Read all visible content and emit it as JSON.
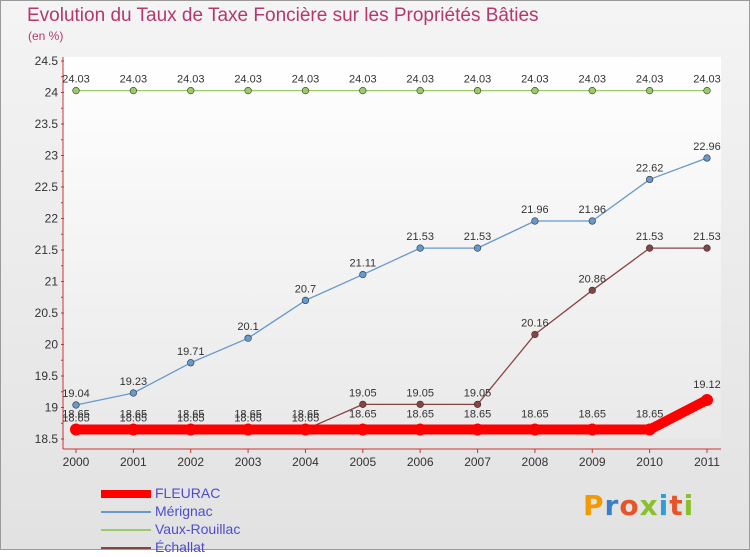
{
  "chart_data": {
    "type": "line",
    "title": "Evolution du Taux de Taxe Foncière sur les Propriétés Bâties",
    "ylabel": "(en %)",
    "categories": [
      "2000",
      "2001",
      "2002",
      "2003",
      "2004",
      "2005",
      "2006",
      "2007",
      "2008",
      "2009",
      "2010",
      "2011"
    ],
    "ylim": [
      18.5,
      24.5
    ],
    "yticks": [
      18.5,
      19,
      19.5,
      20,
      20.5,
      21,
      21.5,
      22,
      22.5,
      23,
      23.5,
      24,
      24.5
    ],
    "ytick_labels": [
      "18.5",
      "19",
      "19.5",
      "20",
      "20.5",
      "21",
      "21.5",
      "22",
      "22.5",
      "23",
      "23.5",
      "24",
      "24.5"
    ],
    "series": [
      {
        "name": "FLEURAC",
        "color": "#ff0000",
        "values": [
          18.65,
          18.65,
          18.65,
          18.65,
          18.65,
          18.65,
          18.65,
          18.65,
          18.65,
          18.65,
          18.65,
          19.12
        ],
        "labels": [
          "18.65",
          "18.65",
          "18.65",
          "18.65",
          "18.65",
          "18.65",
          "18.65",
          "18.65",
          "18.65",
          "18.65",
          "18.65",
          "19.12"
        ]
      },
      {
        "name": "Mérignac",
        "color": "#6699cc",
        "values": [
          19.04,
          19.23,
          19.71,
          20.1,
          20.7,
          21.11,
          21.53,
          21.53,
          21.96,
          21.96,
          22.62,
          22.96
        ],
        "labels": [
          "19.04",
          "19.23",
          "19.71",
          "20.1",
          "20.7",
          "21.11",
          "21.53",
          "21.53",
          "21.96",
          "21.96",
          "22.62",
          "22.96"
        ]
      },
      {
        "name": "Vaux-Rouillac",
        "color": "#99cc66",
        "values": [
          24.03,
          24.03,
          24.03,
          24.03,
          24.03,
          24.03,
          24.03,
          24.03,
          24.03,
          24.03,
          24.03,
          24.03
        ],
        "labels": [
          "24.03",
          "24.03",
          "24.03",
          "24.03",
          "24.03",
          "24.03",
          "24.03",
          "24.03",
          "24.03",
          "24.03",
          "24.03",
          "24.03"
        ]
      },
      {
        "name": "Échallat",
        "color": "#884444",
        "values": [
          18.65,
          18.65,
          18.65,
          18.65,
          18.65,
          19.05,
          19.05,
          19.05,
          20.16,
          20.86,
          21.53,
          21.53
        ],
        "labels": [
          "18.65",
          "18.65",
          "18.65",
          "18.65",
          "18.65",
          "19.05",
          "19.05",
          "19.05",
          "20.16",
          "20.86",
          "21.53",
          "21.53"
        ]
      }
    ]
  },
  "logo": {
    "text": "Proxiti",
    "letter_colors": [
      "#f29a00",
      "#3b7fc8",
      "#e8542a",
      "#8bbf2e",
      "#2e9ed8",
      "#e8542a",
      "#8bbf2e"
    ]
  }
}
